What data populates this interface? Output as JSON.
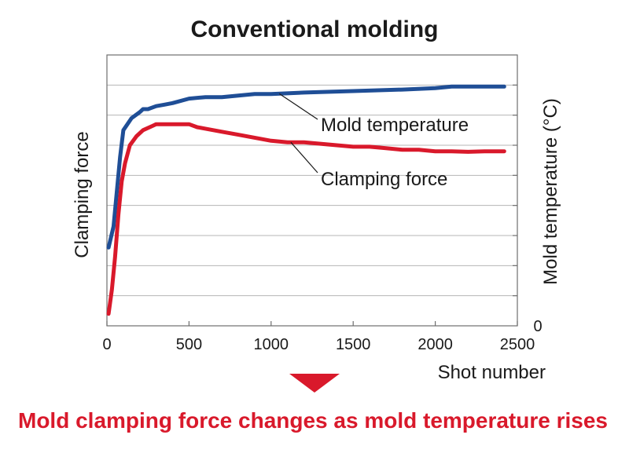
{
  "chart_data": {
    "type": "line",
    "title": "Conventional molding",
    "xlabel": "Shot number",
    "ylabel_left": "Clamping force",
    "ylabel_right": "Mold temperature (°C)",
    "xlim": [
      0,
      2500
    ],
    "ylim_right": [
      0,
      9
    ],
    "x_ticks": [
      0,
      500,
      1000,
      1500,
      2000,
      2500
    ],
    "right_y_tick_labels": [
      "0"
    ],
    "grid": "horizontal",
    "series": [
      {
        "name": "Mold temperature",
        "color": "#1f4e96",
        "x": [
          10,
          40,
          80,
          100,
          150,
          200,
          220,
          250,
          300,
          350,
          400,
          500,
          600,
          700,
          800,
          900,
          1000,
          1200,
          1500,
          1800,
          2000,
          2100,
          2200,
          2300,
          2420
        ],
        "y": [
          2.6,
          3.3,
          5.6,
          6.5,
          6.9,
          7.1,
          7.2,
          7.2,
          7.3,
          7.35,
          7.4,
          7.55,
          7.6,
          7.6,
          7.65,
          7.7,
          7.7,
          7.75,
          7.8,
          7.85,
          7.9,
          7.95,
          7.95,
          7.95,
          7.95
        ]
      },
      {
        "name": "Clamping force",
        "color": "#d9192b",
        "x": [
          10,
          30,
          50,
          70,
          90,
          110,
          140,
          180,
          220,
          280,
          300,
          400,
          500,
          550,
          600,
          700,
          800,
          900,
          1000,
          1100,
          1200,
          1300,
          1400,
          1500,
          1600,
          1700,
          1800,
          1900,
          2000,
          2100,
          2200,
          2300,
          2420
        ],
        "y": [
          0.4,
          1.2,
          2.3,
          3.7,
          4.8,
          5.4,
          6.0,
          6.3,
          6.5,
          6.65,
          6.7,
          6.7,
          6.7,
          6.6,
          6.55,
          6.45,
          6.35,
          6.25,
          6.15,
          6.1,
          6.1,
          6.05,
          6.0,
          5.95,
          5.95,
          5.9,
          5.85,
          5.85,
          5.8,
          5.8,
          5.78,
          5.8,
          5.8
        ]
      }
    ],
    "annotations": [
      {
        "text": "Mold temperature",
        "series": "Mold temperature",
        "points_to_x": 1050
      },
      {
        "text": "Clamping force",
        "series": "Clamping force",
        "points_to_x": 1120
      }
    ],
    "caption": "Mold clamping force changes as mold temperature rises",
    "caption_color": "#d9192b",
    "arrow_color": "#d9192b"
  }
}
